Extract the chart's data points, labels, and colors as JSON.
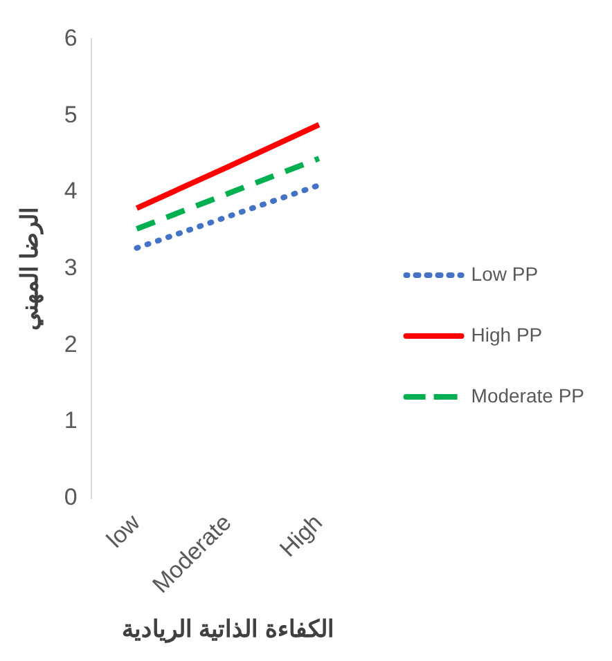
{
  "chart_data": {
    "type": "line",
    "xlabel": "الكفاءة الذاتية الريادية",
    "ylabel": "الرضا المهني",
    "categories": [
      "low",
      "Moderate",
      "High"
    ],
    "series": [
      {
        "name": "Low PP",
        "color": "#4472c4",
        "values": [
          3.27,
          3.68,
          4.09
        ],
        "line_style": "dotted"
      },
      {
        "name": "High PP",
        "color": "#ff0000",
        "values": [
          3.79,
          4.33,
          4.88
        ],
        "line_style": "solid"
      },
      {
        "name": "Moderate PP",
        "color": "#00b050",
        "values": [
          3.52,
          3.98,
          4.44
        ],
        "line_style": "dashed"
      }
    ],
    "ylim": [
      0,
      6
    ],
    "yticks": [
      0,
      1,
      2,
      3,
      4,
      5,
      6
    ],
    "grid": false,
    "legend": "right",
    "marker": "none"
  }
}
